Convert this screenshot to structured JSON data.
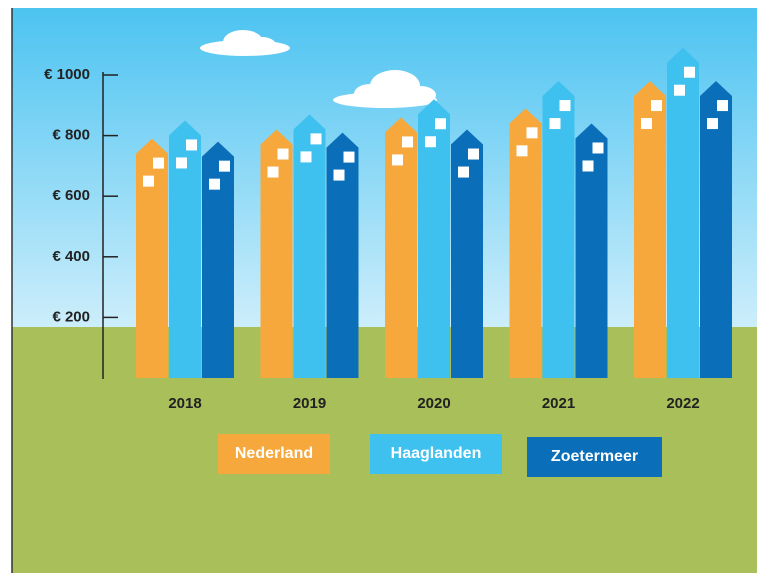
{
  "chart_data": {
    "type": "bar",
    "categories": [
      "2018",
      "2019",
      "2020",
      "2021",
      "2022"
    ],
    "series": [
      {
        "name": "Nederland",
        "color": "#f6a83c",
        "values": [
          790,
          820,
          860,
          890,
          980
        ]
      },
      {
        "name": "Haaglanden",
        "color": "#3fc1ef",
        "values": [
          850,
          870,
          920,
          980,
          1090
        ]
      },
      {
        "name": "Zoetermeer",
        "color": "#0a6fb8",
        "values": [
          780,
          810,
          820,
          840,
          980
        ]
      }
    ],
    "ylim": [
      0,
      1000
    ],
    "yticks": [
      {
        "value": 200,
        "label": "€ 200"
      },
      {
        "value": 400,
        "label": "€ 400"
      },
      {
        "value": 600,
        "label": "€ 600"
      },
      {
        "value": 800,
        "label": "€ 800"
      },
      {
        "value": 1000,
        "label": "€ 1000"
      }
    ]
  }
}
